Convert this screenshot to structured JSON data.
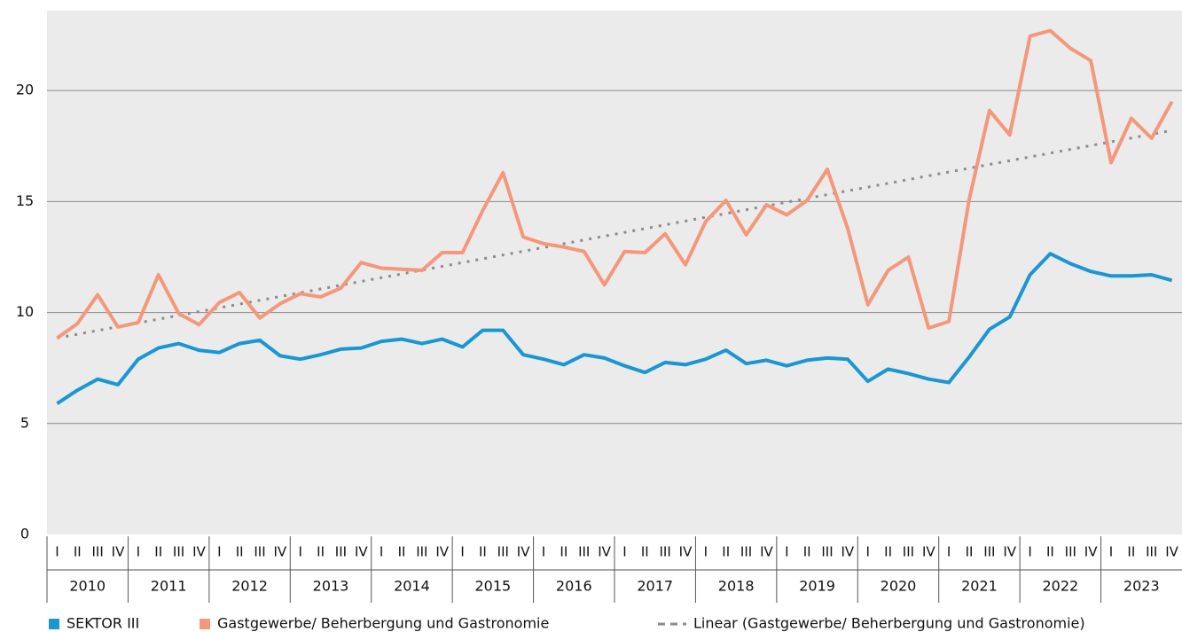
{
  "chart_data": {
    "type": "line",
    "quarters": [
      "I",
      "II",
      "III",
      "IV",
      "I",
      "II",
      "III",
      "IV",
      "I",
      "II",
      "III",
      "IV",
      "I",
      "II",
      "III",
      "IV",
      "I",
      "II",
      "III",
      "IV",
      "I",
      "II",
      "III",
      "IV",
      "I",
      "II",
      "III",
      "IV",
      "I",
      "II",
      "III",
      "IV",
      "I",
      "II",
      "III",
      "IV",
      "I",
      "II",
      "III",
      "IV",
      "I",
      "II",
      "III",
      "IV",
      "I",
      "II",
      "III",
      "IV",
      "I",
      "II",
      "III",
      "IV",
      "I",
      "II",
      "III",
      "IV"
    ],
    "years": [
      "2010",
      "2011",
      "2012",
      "2013",
      "2014",
      "2015",
      "2016",
      "2017",
      "2018",
      "2019",
      "2020",
      "2021",
      "2022",
      "2023"
    ],
    "ylim": [
      0,
      23.6
    ],
    "yticks": [
      0,
      5,
      10,
      15,
      20
    ],
    "grid": true,
    "legend": "bottom",
    "series": [
      {
        "name": "SEKTOR III",
        "color": "#1a96d2",
        "values": [
          5.9,
          6.5,
          7.0,
          6.75,
          7.9,
          8.4,
          8.6,
          8.3,
          8.2,
          8.6,
          8.75,
          8.05,
          7.9,
          8.1,
          8.35,
          8.4,
          8.7,
          8.8,
          8.6,
          8.8,
          8.45,
          9.2,
          9.2,
          8.1,
          7.9,
          7.65,
          8.1,
          7.95,
          7.6,
          7.3,
          7.75,
          7.65,
          7.9,
          8.3,
          7.7,
          7.85,
          7.6,
          7.85,
          7.95,
          7.9,
          6.9,
          7.45,
          7.25,
          7.0,
          6.85,
          8.0,
          9.25,
          9.8,
          11.7,
          12.65,
          12.2,
          11.85,
          11.65,
          11.65,
          11.7,
          11.45
        ]
      },
      {
        "name": "Gastgewerbe/ Beherbergung und Gastronomie",
        "color": "#f4977a",
        "values": [
          8.85,
          9.5,
          10.8,
          9.35,
          9.55,
          11.7,
          9.95,
          9.45,
          10.45,
          10.9,
          9.75,
          10.4,
          10.85,
          10.7,
          11.1,
          12.25,
          12.0,
          11.95,
          11.9,
          12.7,
          12.7,
          14.6,
          16.3,
          13.4,
          13.1,
          12.95,
          12.75,
          11.25,
          12.75,
          12.7,
          13.55,
          12.15,
          14.1,
          15.05,
          13.5,
          14.85,
          14.4,
          15.05,
          16.45,
          13.8,
          10.35,
          11.9,
          12.5,
          9.3,
          9.6,
          15.1,
          19.1,
          18.0,
          22.45,
          22.7,
          21.9,
          21.35,
          16.75,
          18.75,
          17.85,
          19.5
        ]
      }
    ],
    "trend": {
      "name": "Linear (Gastgewerbe/ Beherbergung und Gastronomie)",
      "color": "#8c8c8c",
      "start": 8.85,
      "end": 18.2
    }
  }
}
